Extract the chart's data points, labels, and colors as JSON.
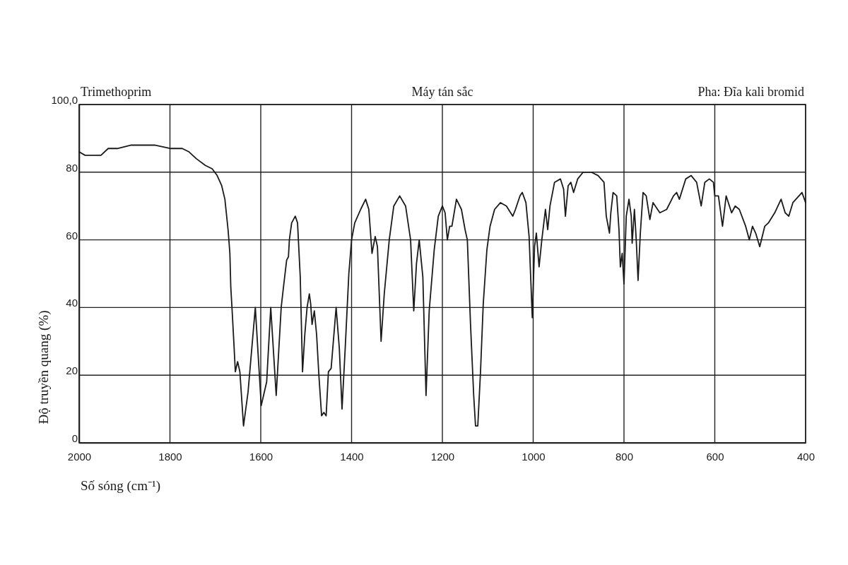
{
  "chart_data": {
    "type": "line",
    "title": "Trimethoprim",
    "annotations": [
      "Máy tán sắc",
      "Pha: Đĩa kali bromid"
    ],
    "xlabel": "Số sóng (cm⁻¹)",
    "ylabel": "Độ truyền quang (%)",
    "xlim": [
      2000,
      400
    ],
    "xticks": [
      2000,
      1800,
      1600,
      1400,
      1200,
      1000,
      800,
      600,
      400
    ],
    "ylim": [
      0,
      100
    ],
    "yticks": [
      0,
      20,
      40,
      60,
      80,
      {
        "value": 100,
        "label": "100,0"
      }
    ],
    "grid": true,
    "color": "#1a1a1a",
    "x": [
      2000,
      1987,
      1967,
      1952,
      1936,
      1916,
      1885,
      1865,
      1834,
      1798,
      1773,
      1758,
      1742,
      1722,
      1707,
      1696,
      1686,
      1679,
      1672,
      1668,
      1666,
      1663,
      1659,
      1656,
      1651,
      1646,
      1638,
      1628,
      1612,
      1599,
      1587,
      1578,
      1566,
      1555,
      1550,
      1543,
      1539,
      1537,
      1532,
      1524,
      1519,
      1513,
      1508,
      1503,
      1498,
      1493,
      1490,
      1487,
      1482,
      1477,
      1472,
      1466,
      1461,
      1456,
      1451,
      1445,
      1434,
      1427,
      1421,
      1414,
      1406,
      1400,
      1393,
      1380,
      1369,
      1362,
      1355,
      1348,
      1343,
      1335,
      1328,
      1317,
      1307,
      1294,
      1281,
      1270,
      1263,
      1257,
      1251,
      1243,
      1236,
      1229,
      1218,
      1209,
      1200,
      1194,
      1189,
      1184,
      1179,
      1169,
      1158,
      1150,
      1145,
      1138,
      1131,
      1127,
      1122,
      1116,
      1110,
      1102,
      1095,
      1085,
      1072,
      1059,
      1045,
      1039,
      1029,
      1024,
      1016,
      1009,
      1002,
      997,
      993,
      987,
      981,
      973,
      968,
      963,
      953,
      940,
      933,
      929,
      923,
      917,
      911,
      902,
      890,
      872,
      857,
      844,
      839,
      832,
      829,
      824,
      816,
      811,
      808,
      804,
      800,
      795,
      789,
      784,
      782,
      777,
      773,
      769,
      764,
      758,
      751,
      743,
      736,
      721,
      706,
      691,
      684,
      678,
      664,
      652,
      640,
      630,
      622,
      612,
      603,
      600,
      592,
      583,
      575,
      563,
      555,
      546,
      532,
      524,
      517,
      510,
      501,
      490,
      482,
      468,
      454,
      445,
      437,
      428,
      408,
      400
    ],
    "values": [
      86,
      85,
      85,
      85,
      87,
      87,
      88,
      88,
      88,
      87,
      87,
      86,
      84,
      82,
      81,
      79,
      76,
      72,
      63,
      56,
      46,
      39,
      29,
      21,
      24,
      21,
      5,
      15,
      40,
      11,
      18,
      40,
      14,
      40,
      46,
      54,
      55,
      60,
      65,
      67,
      65,
      49,
      21,
      32,
      40,
      44,
      41,
      35,
      39,
      32,
      20,
      8,
      9,
      8,
      21,
      22,
      40,
      28,
      10,
      28,
      50,
      60,
      65,
      69,
      72,
      69,
      56,
      61,
      58,
      30,
      44,
      60,
      70,
      73,
      70,
      60,
      39,
      53,
      60,
      49,
      14,
      39,
      57,
      67,
      70,
      68,
      60,
      64,
      64,
      72,
      69,
      63,
      60,
      35,
      14,
      5,
      5,
      21,
      41,
      57,
      64,
      69,
      71,
      70,
      67,
      69,
      73,
      74,
      71,
      61,
      37,
      58,
      62,
      52,
      60,
      69,
      63,
      70,
      77,
      78,
      75,
      67,
      76,
      77,
      74,
      78,
      80,
      80,
      79,
      77,
      67,
      62,
      68,
      74,
      73,
      63,
      52,
      56,
      47,
      67,
      72,
      67,
      59,
      69,
      60,
      48,
      62,
      74,
      73,
      66,
      71,
      68,
      69,
      73,
      74,
      72,
      78,
      79,
      77,
      70,
      77,
      78,
      77,
      73,
      73,
      64,
      73,
      68,
      70,
      69,
      64,
      60,
      64,
      62,
      58,
      64,
      65,
      68,
      72,
      68,
      67,
      71,
      74,
      71
    ]
  }
}
